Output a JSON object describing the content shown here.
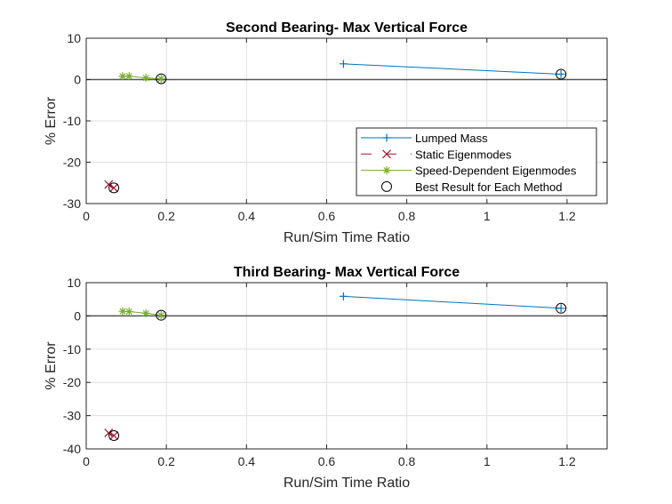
{
  "chart_data": [
    {
      "type": "line",
      "title": "Second Bearing- Max Vertical Force",
      "xlabel": "Run/Sim Time Ratio",
      "ylabel": "% Error",
      "xlim": [
        0,
        1.3
      ],
      "ylim": [
        -30,
        10
      ],
      "xticks": [
        0,
        0.2,
        0.4,
        0.6,
        0.8,
        1,
        1.2
      ],
      "xtick_labels": [
        "0",
        "0.2",
        "0.4",
        "0.6",
        "0.8",
        "1",
        "1.2"
      ],
      "yticks": [
        10,
        0,
        -10,
        -20,
        -30
      ],
      "ytick_labels": [
        "10",
        "0",
        "-10",
        "-20",
        "-30"
      ],
      "grid": true,
      "series": [
        {
          "name": "Lumped Mass",
          "color": "#0072BD",
          "marker": "plus",
          "linestyle": "solid",
          "x": [
            0.642,
            1.185
          ],
          "y": [
            3.8,
            1.3
          ]
        },
        {
          "name": "Static Eigenmodes",
          "color": "#A2142F",
          "marker": "x",
          "linestyle": "dashed",
          "x": [
            0.056,
            0.069
          ],
          "y": [
            -25.4,
            -26.2
          ]
        },
        {
          "name": "Speed-Dependent Eigenmodes",
          "color": "#77AC30",
          "marker": "star",
          "linestyle": "solid",
          "x": [
            0.091,
            0.107,
            0.149,
            0.187
          ],
          "y": [
            0.8,
            0.8,
            0.4,
            0.2
          ]
        },
        {
          "name": "Best Result for Each Method",
          "color": "#000000",
          "marker": "circle",
          "linestyle": "none",
          "x": [
            1.185,
            0.069,
            0.187
          ],
          "y": [
            1.3,
            -26.2,
            0.2
          ]
        }
      ],
      "legend": {
        "position": "bottom-right",
        "entries": [
          "Lumped Mass",
          "Static Eigenmodes",
          "Speed-Dependent Eigenmodes",
          "Best Result for Each Method"
        ]
      }
    },
    {
      "type": "line",
      "title": "Third Bearing- Max Vertical Force",
      "xlabel": "Run/Sim Time Ratio",
      "ylabel": "% Error",
      "xlim": [
        0,
        1.3
      ],
      "ylim": [
        -40,
        10
      ],
      "xticks": [
        0,
        0.2,
        0.4,
        0.6,
        0.8,
        1,
        1.2
      ],
      "xtick_labels": [
        "0",
        "0.2",
        "0.4",
        "0.6",
        "0.8",
        "1",
        "1.2"
      ],
      "yticks": [
        10,
        0,
        -10,
        -20,
        -30,
        -40
      ],
      "ytick_labels": [
        "10",
        "0",
        "-10",
        "-20",
        "-30",
        "-40"
      ],
      "grid": true,
      "series": [
        {
          "name": "Lumped Mass",
          "color": "#0072BD",
          "marker": "plus",
          "linestyle": "solid",
          "x": [
            0.642,
            1.185
          ],
          "y": [
            5.9,
            2.3
          ]
        },
        {
          "name": "Static Eigenmodes",
          "color": "#A2142F",
          "marker": "x",
          "linestyle": "dashed",
          "x": [
            0.056,
            0.069
          ],
          "y": [
            -35.2,
            -36.0
          ]
        },
        {
          "name": "Speed-Dependent Eigenmodes",
          "color": "#77AC30",
          "marker": "star",
          "linestyle": "solid",
          "x": [
            0.091,
            0.107,
            0.149,
            0.187
          ],
          "y": [
            1.4,
            1.3,
            0.8,
            0.2
          ]
        },
        {
          "name": "Best Result for Each Method",
          "color": "#000000",
          "marker": "circle",
          "linestyle": "none",
          "x": [
            1.185,
            0.069,
            0.187
          ],
          "y": [
            2.3,
            -36.0,
            0.2
          ]
        }
      ]
    }
  ]
}
